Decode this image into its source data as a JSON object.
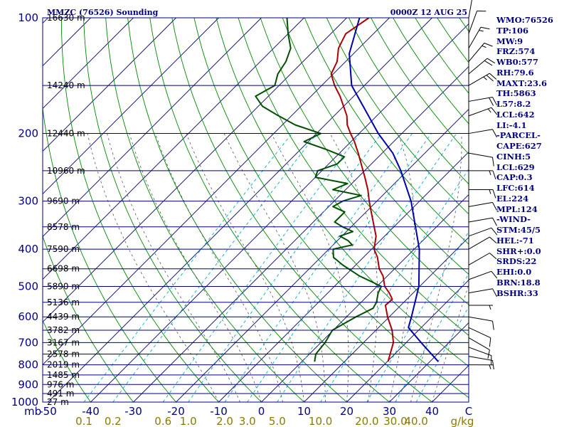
{
  "header": {
    "station": "MMZC (76526) Sounding",
    "time": "0000Z 12 AUG 25"
  },
  "chart_data": {
    "type": "skew-t",
    "pressure_axis": {
      "unit": "mb",
      "range": [
        1000,
        100
      ],
      "scale": "log",
      "ticks": [
        1000,
        900,
        800,
        700,
        600,
        500,
        400,
        300,
        200,
        100
      ]
    },
    "temperature_axis": {
      "unit": "C",
      "ticks": [
        -50,
        -40,
        -30,
        -20,
        -10,
        0,
        10,
        20,
        30,
        40
      ]
    },
    "temperature_tick_labels": [
      "-50",
      "-40",
      "-30",
      "-20",
      "-10",
      "0",
      "10",
      "20",
      "30",
      "40",
      "C"
    ],
    "mixing_ratio_labels": [
      "0.1",
      "0.2",
      "0.6",
      "1.0",
      "2.0",
      "3.0",
      "5.0",
      "10.0",
      "20.0",
      "30.0",
      "40.0",
      "g/kg"
    ],
    "mixing_ratio_values": [
      0.1,
      0.2,
      0.6,
      1.0,
      2.0,
      3.0,
      5.0,
      10.0,
      20.0,
      30.0,
      40.0
    ],
    "height_levels": [
      {
        "p": 1000,
        "label": "27 m"
      },
      {
        "p": 950,
        "label": "491 m"
      },
      {
        "p": 900,
        "label": "976 m"
      },
      {
        "p": 850,
        "label": "1485 m"
      },
      {
        "p": 800,
        "label": "2019 m"
      },
      {
        "p": 750,
        "label": "2578 m"
      },
      {
        "p": 700,
        "label": "3167 m"
      },
      {
        "p": 650,
        "label": "3782 m"
      },
      {
        "p": 600,
        "label": "4439 m"
      },
      {
        "p": 550,
        "label": "5136 m"
      },
      {
        "p": 500,
        "label": "5890 m"
      },
      {
        "p": 450,
        "label": "6698 m"
      },
      {
        "p": 400,
        "label": "7590 m"
      },
      {
        "p": 350,
        "label": "8578 m"
      },
      {
        "p": 300,
        "label": "9690 m"
      },
      {
        "p": 250,
        "label": "10960 m"
      },
      {
        "p": 200,
        "label": "12440 m"
      },
      {
        "p": 150,
        "label": "14240 m"
      },
      {
        "p": 100,
        "label": "16630 m"
      }
    ],
    "series": [
      {
        "kind": "temperature",
        "color": "#aa0000",
        "points": [
          [
            785,
            20.2
          ],
          [
            700,
            17.0
          ],
          [
            650,
            13.8
          ],
          [
            600,
            9.6
          ],
          [
            560,
            6.4
          ],
          [
            540,
            6.6
          ],
          [
            520,
            4.4
          ],
          [
            500,
            1.8
          ],
          [
            470,
            -1.0
          ],
          [
            450,
            -3.6
          ],
          [
            420,
            -6.7
          ],
          [
            400,
            -9.4
          ],
          [
            370,
            -12.0
          ],
          [
            350,
            -14.6
          ],
          [
            320,
            -18.8
          ],
          [
            300,
            -21.8
          ],
          [
            280,
            -24.8
          ],
          [
            260,
            -28.4
          ],
          [
            240,
            -32.4
          ],
          [
            225,
            -35.6
          ],
          [
            210,
            -39.2
          ],
          [
            200,
            -42.0
          ],
          [
            190,
            -44.8
          ],
          [
            180,
            -47.0
          ],
          [
            170,
            -50.0
          ],
          [
            160,
            -53.2
          ],
          [
            150,
            -57.0
          ],
          [
            140,
            -60.5
          ],
          [
            130,
            -62.0
          ],
          [
            120,
            -64.8
          ],
          [
            110,
            -66.5
          ],
          [
            100,
            -64.8
          ]
        ]
      },
      {
        "kind": "dewpoint",
        "color": "#005000",
        "points": [
          [
            785,
            3.0
          ],
          [
            750,
            1.5
          ],
          [
            700,
            1.0
          ],
          [
            650,
            -0.2
          ],
          [
            600,
            2.2
          ],
          [
            570,
            4.2
          ],
          [
            550,
            3.6
          ],
          [
            520,
            1.8
          ],
          [
            500,
            1.0
          ],
          [
            470,
            -6.5
          ],
          [
            440,
            -13.0
          ],
          [
            420,
            -17.0
          ],
          [
            400,
            -19.0
          ],
          [
            390,
            -15.5
          ],
          [
            380,
            -17.5
          ],
          [
            370,
            -20.5
          ],
          [
            360,
            -18.5
          ],
          [
            350,
            -22.0
          ],
          [
            340,
            -25.0
          ],
          [
            320,
            -25.0
          ],
          [
            310,
            -29.0
          ],
          [
            300,
            -28.0
          ],
          [
            290,
            -25.0
          ],
          [
            280,
            -33.0
          ],
          [
            270,
            -31.0
          ],
          [
            260,
            -40.0
          ],
          [
            250,
            -41.0
          ],
          [
            240,
            -38.0
          ],
          [
            230,
            -38.0
          ],
          [
            220,
            -44.0
          ],
          [
            210,
            -51.0
          ],
          [
            200,
            -49.0
          ],
          [
            190,
            -57.0
          ],
          [
            180,
            -63.0
          ],
          [
            170,
            -69.0
          ],
          [
            160,
            -73.0
          ],
          [
            150,
            -71.0
          ],
          [
            140,
            -73.0
          ],
          [
            130,
            -74.0
          ],
          [
            120,
            -76.0
          ],
          [
            110,
            -80.0
          ],
          [
            100,
            -84.0
          ]
        ]
      },
      {
        "kind": "parcel",
        "color": "#0000aa",
        "points": [
          [
            785,
            32.0
          ],
          [
            700,
            23.5
          ],
          [
            640,
            17.0
          ],
          [
            600,
            15.2
          ],
          [
            500,
            9.8
          ],
          [
            400,
            1.2
          ],
          [
            300,
            -12.0
          ],
          [
            250,
            -21.5
          ],
          [
            225,
            -27.5
          ],
          [
            200,
            -35.5
          ],
          [
            150,
            -53.0
          ],
          [
            124,
            -61.0
          ],
          [
            100,
            -67.0
          ]
        ]
      }
    ],
    "wind_barbs": [
      {
        "p": 800,
        "dir": 90,
        "spd": 5
      },
      {
        "p": 760,
        "dir": 100,
        "spd": 10
      },
      {
        "p": 720,
        "dir": 110,
        "spd": 10
      },
      {
        "p": 680,
        "dir": 120,
        "spd": 10
      },
      {
        "p": 640,
        "dir": 115,
        "spd": 10
      },
      {
        "p": 600,
        "dir": 100,
        "spd": 10
      },
      {
        "p": 560,
        "dir": 90,
        "spd": 5
      },
      {
        "p": 520,
        "dir": 80,
        "spd": 10
      },
      {
        "p": 480,
        "dir": 70,
        "spd": 10
      },
      {
        "p": 440,
        "dir": 60,
        "spd": 10
      },
      {
        "p": 400,
        "dir": 60,
        "spd": 10
      },
      {
        "p": 370,
        "dir": 70,
        "spd": 10
      },
      {
        "p": 340,
        "dir": 80,
        "spd": 10
      },
      {
        "p": 310,
        "dir": 80,
        "spd": 10
      },
      {
        "p": 280,
        "dir": 90,
        "spd": 15
      },
      {
        "p": 250,
        "dir": 90,
        "spd": 15
      },
      {
        "p": 225,
        "dir": 100,
        "spd": 10
      },
      {
        "p": 200,
        "dir": 80,
        "spd": 10
      },
      {
        "p": 180,
        "dir": 70,
        "spd": 15
      },
      {
        "p": 165,
        "dir": 80,
        "spd": 20
      },
      {
        "p": 150,
        "dir": 60,
        "spd": 25
      },
      {
        "p": 140,
        "dir": 50,
        "spd": 20
      },
      {
        "p": 130,
        "dir": 40,
        "spd": 15
      },
      {
        "p": 120,
        "dir": 30,
        "spd": 15
      },
      {
        "p": 110,
        "dir": 20,
        "spd": 10
      },
      {
        "p": 100,
        "dir": 10,
        "spd": 10
      }
    ]
  },
  "indices": [
    "WMO:76526",
    "TP:106",
    "MW:9",
    "FRZ:574",
    "WB0:577",
    "RH:79.6",
    "MAXT:23.6",
    "TH:5863",
    "L57:8.2",
    "LCL:642",
    "LI:-4.1",
    "-PARCEL-",
    "CAPE:627",
    "CINH:5",
    "LCL:629",
    "CAP:0.3",
    "LFC:614",
    "EL:224",
    "MPL:124",
    "-WIND-",
    "STM:45/5",
    "HEL:-71",
    "SHR+:0.0",
    "SRDS:22",
    "EHI:0.0",
    "BRN:18.8",
    "BSHR:33"
  ],
  "colors": {
    "frame": "#000080",
    "isobar": "#000080",
    "isotherm": "#000080",
    "dry_adiabat": "#008800",
    "moist_adiabat": "#555555",
    "mixing_ratio": "#00aacc",
    "mixing_label": "#8a7a00"
  }
}
